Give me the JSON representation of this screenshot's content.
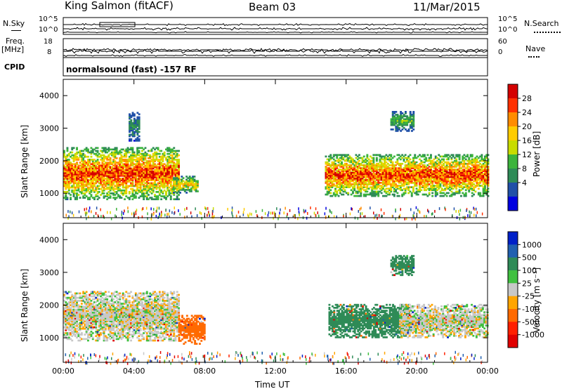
{
  "header": {
    "station": "King Salmon (fitACF)",
    "beam": "Beam 03",
    "date": "11/Mar/2015"
  },
  "status_panels": {
    "nsky_label": "N.Sky",
    "nsearch_label": "N.Search",
    "noise_ticks": [
      "10^5",
      "10^0"
    ],
    "freq_label": "Freq.",
    "freq_unit": "[MHz]",
    "freq_ticks": [
      "18",
      "8"
    ],
    "nave_label": "Nave",
    "nave_ticks": [
      "60",
      "0"
    ],
    "cpid_label": "CPID",
    "cpid_text": "normalsound (fast) -157 RF"
  },
  "chart_data": [
    {
      "type": "heatmap",
      "panel": "power",
      "ylabel": "Slant Range [km]",
      "yticks": [
        1000,
        2000,
        3000,
        4000
      ],
      "ylim": [
        250,
        4500
      ],
      "xticks": [
        "00:00",
        "04:00",
        "08:00",
        "12:00",
        "16:00",
        "20:00",
        "00:00"
      ],
      "xlim_hours": [
        0,
        24
      ],
      "colorbar": {
        "label": "Power [dB]",
        "ticks": [
          "28",
          "24",
          "20",
          "16",
          "12",
          "8",
          "4"
        ],
        "colors": [
          "#d40000",
          "#ff3000",
          "#ff8c00",
          "#ffcc00",
          "#c8dc00",
          "#3cb43c",
          "#2e8b57",
          "#2050a8",
          "#0000e0"
        ]
      },
      "echo_regions": [
        {
          "t_start": 0.0,
          "t_end": 6.5,
          "range_min": 800,
          "range_max": 2400,
          "peak_db": 28
        },
        {
          "t_start": 6.2,
          "t_end": 7.6,
          "range_min": 1000,
          "range_max": 1500,
          "peak_db": 20
        },
        {
          "t_start": 3.7,
          "t_end": 4.3,
          "range_min": 2600,
          "range_max": 3500,
          "peak_db": 8
        },
        {
          "t_start": 14.8,
          "t_end": 24.0,
          "range_min": 900,
          "range_max": 2200,
          "peak_db": 28
        },
        {
          "t_start": 18.5,
          "t_end": 19.8,
          "range_min": 2900,
          "range_max": 3500,
          "peak_db": 12
        }
      ]
    },
    {
      "type": "heatmap",
      "panel": "velocity",
      "ylabel": "Slant Range [km]",
      "yticks": [
        1000,
        2000,
        3000,
        4000
      ],
      "ylim": [
        250,
        4500
      ],
      "xticks": [
        "00:00",
        "04:00",
        "08:00",
        "12:00",
        "16:00",
        "20:00",
        "00:00"
      ],
      "xlim_hours": [
        0,
        24
      ],
      "xlabel": "Time UT",
      "colorbar": {
        "label": "Velocity [m s⁻¹]",
        "ticks": [
          "1000",
          "500",
          "100",
          "25",
          "-25",
          "-100",
          "-500",
          "-1000"
        ],
        "colors": [
          "#0020c8",
          "#2060b0",
          "#2e8b57",
          "#40c040",
          "#c8c8c8",
          "#ffa500",
          "#ff6a00",
          "#ff2000",
          "#e00000"
        ]
      },
      "echo_regions": [
        {
          "t_start": 0.0,
          "t_end": 6.5,
          "range_min": 900,
          "range_max": 2400,
          "velocity": 0
        },
        {
          "t_start": 6.5,
          "t_end": 8.0,
          "range_min": 800,
          "range_max": 1700,
          "velocity": -300
        },
        {
          "t_start": 15.0,
          "t_end": 19.5,
          "range_min": 1000,
          "range_max": 2000,
          "velocity": 150
        },
        {
          "t_start": 18.5,
          "t_end": 19.8,
          "range_min": 2900,
          "range_max": 3500,
          "velocity": 200
        },
        {
          "t_start": 19.0,
          "t_end": 24.0,
          "range_min": 1000,
          "range_max": 2000,
          "velocity": 0
        }
      ]
    }
  ]
}
